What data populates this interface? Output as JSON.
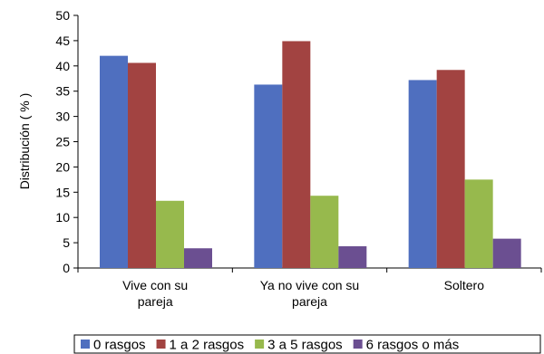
{
  "chart_data": {
    "type": "bar",
    "categories": [
      [
        "Vive con su",
        "pareja"
      ],
      [
        "Ya no vive con su",
        "pareja"
      ],
      [
        "Soltero"
      ]
    ],
    "series": [
      {
        "name": "0 rasgos",
        "color": "#4f6fbf",
        "values": [
          42,
          36.3,
          37.2
        ]
      },
      {
        "name": "1 a 2 rasgos",
        "color": "#a24341",
        "values": [
          40.6,
          44.9,
          39.2
        ]
      },
      {
        "name": "3 a 5 rasgos",
        "color": "#97b94d",
        "values": [
          13.3,
          14.3,
          17.5
        ]
      },
      {
        "name": "6 rasgos o más",
        "color": "#6b4f91",
        "values": [
          3.9,
          4.3,
          5.8
        ]
      }
    ],
    "ylabel": "Distribución ( % )",
    "ylim": [
      0,
      50
    ],
    "yticks": [
      0,
      5,
      10,
      15,
      20,
      25,
      30,
      35,
      40,
      45,
      50
    ],
    "grid": false,
    "legend": "bottom"
  }
}
